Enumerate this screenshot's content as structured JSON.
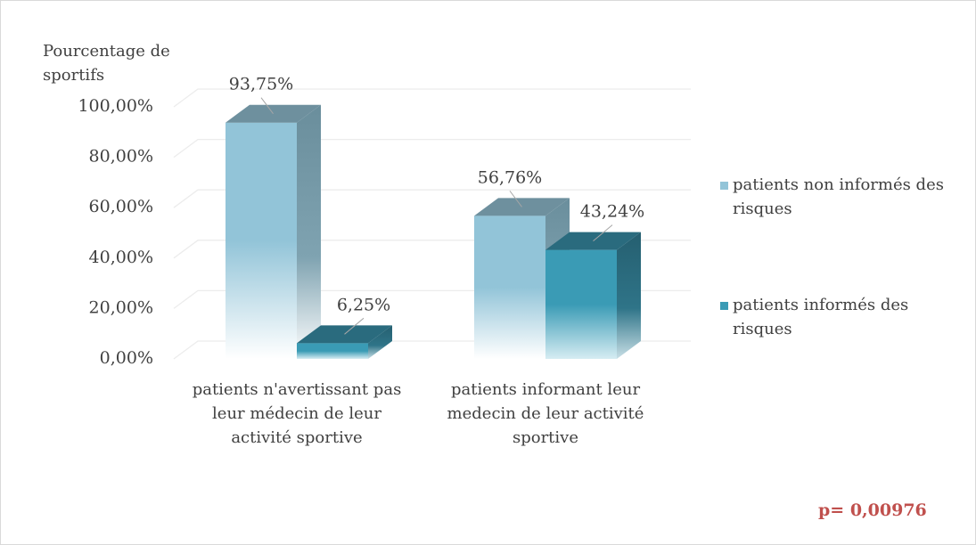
{
  "chart_data": {
    "type": "bar3d",
    "y_label": "Pourcentage de sportifs",
    "categories": [
      "patients n'avertissant pas leur médecin de leur activité sportive",
      "patients informant leur medecin de leur activité sportive"
    ],
    "series": [
      {
        "name": "patients non informés des risques",
        "color": "#92c4d8",
        "values": [
          93.75,
          56.76
        ],
        "value_labels": [
          "93,75%",
          "56,76%"
        ]
      },
      {
        "name": "patients informés des risques",
        "color": "#3a9bb5",
        "values": [
          6.25,
          43.24
        ],
        "value_labels": [
          "6,25%",
          "43,24%"
        ]
      }
    ],
    "ylim": [
      0,
      100
    ],
    "yticks": [
      {
        "value": 0,
        "label": "0,00%"
      },
      {
        "value": 20,
        "label": "20,00%"
      },
      {
        "value": 40,
        "label": "40,00%"
      },
      {
        "value": 60,
        "label": "60,00%"
      },
      {
        "value": 80,
        "label": "80,00%"
      },
      {
        "value": 100,
        "label": "100,00%"
      }
    ],
    "grid": true,
    "annotation": "p= 0,00976"
  }
}
